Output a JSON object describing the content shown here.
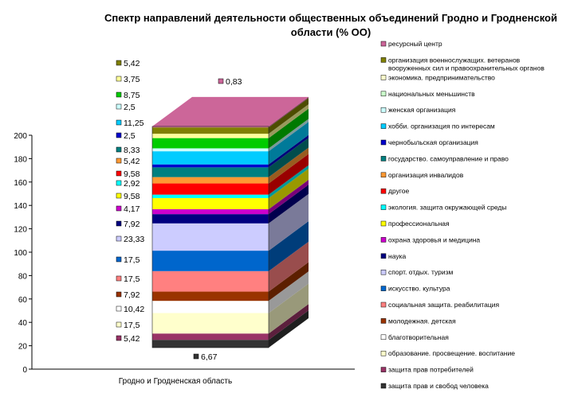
{
  "chart_data": {
    "type": "bar",
    "stacked": true,
    "three_d": true,
    "title_lines": [
      "Спектр направлений деятельности общественных объединений Гродно  и Гродненской",
      "области (% ОО)"
    ],
    "categories": [
      "Гродно и Гродненская область"
    ],
    "ylim": [
      0,
      200
    ],
    "yticks": [
      0,
      20,
      40,
      60,
      80,
      100,
      120,
      140,
      160,
      180,
      200
    ],
    "legend_position": "right",
    "series": [
      {
        "name": "защита прав и свобод человека",
        "color": "#333333",
        "values": [
          6.67
        ],
        "label": "6,67"
      },
      {
        "name": "защита прав потребителей",
        "color": "#993366",
        "values": [
          5.42
        ],
        "label": "5,42"
      },
      {
        "name": "образование. просвещение.  воспитание",
        "color": "#FFFFCC",
        "values": [
          17.5
        ],
        "label": "17,5"
      },
      {
        "name": "благотворительная",
        "color": "#FFFFFF",
        "values": [
          10.42
        ],
        "label": "10,42"
      },
      {
        "name": "молодежная. детская",
        "color": "#993300",
        "values": [
          7.92
        ],
        "label": "7,92"
      },
      {
        "name": "социальная защита. реабилитация",
        "color": "#FF8080",
        "values": [
          17.5
        ],
        "label": "17,5"
      },
      {
        "name": "искусство. культура",
        "color": "#0066CC",
        "values": [
          17.5
        ],
        "label": "17,5"
      },
      {
        "name": "спорт. отдых. туризм",
        "color": "#CCCCFF",
        "values": [
          23.33
        ],
        "label": "23,33"
      },
      {
        "name": "наука",
        "color": "#000080",
        "values": [
          7.92
        ],
        "label": "7,92"
      },
      {
        "name": "охрана здоровья и медицина",
        "color": "#CC00CC",
        "values": [
          4.17
        ],
        "label": "4,17"
      },
      {
        "name": "профессиональная",
        "color": "#FFFF00",
        "values": [
          9.58
        ],
        "label": "9,58"
      },
      {
        "name": "экология. защита окружающей среды",
        "color": "#00FFFF",
        "values": [
          2.92
        ],
        "label": "2,92"
      },
      {
        "name": "другое",
        "color": "#FF0000",
        "values": [
          9.58
        ],
        "label": "9,58"
      },
      {
        "name": "организация инвалидов",
        "color": "#FF9933",
        "values": [
          5.42
        ],
        "label": "5,42"
      },
      {
        "name": "государство. самоуправление и право",
        "color": "#008080",
        "values": [
          8.33
        ],
        "label": "8,33"
      },
      {
        "name": "чернобыльская организация",
        "color": "#0000CC",
        "values": [
          2.5
        ],
        "label": "2,5"
      },
      {
        "name": "хобби. организация по интересам",
        "color": "#00CCFF",
        "values": [
          11.25
        ],
        "label": "11,25"
      },
      {
        "name": "женская организация",
        "color": "#CCFFFF",
        "values": [
          2.5
        ],
        "label": "2,5"
      },
      {
        "name": "национальных меньшинств",
        "color": "#CCFFCC",
        "values": [
          0
        ],
        "label": ""
      },
      {
        "name": "экономика. предпринимательство",
        "color": "#FFFFCC",
        "values": [
          0
        ],
        "label": ""
      },
      {
        "name": "",
        "color": "#00CC00",
        "values": [
          8.75
        ],
        "label": "8,75"
      },
      {
        "name": "",
        "color": "#FFFF99",
        "values": [
          3.75
        ],
        "label": "3,75"
      },
      {
        "name": "организация военнослужащих. ветеранов вооруженных сил и правоохранительных органов",
        "color": "#808000",
        "values": [
          5.42
        ],
        "label": "5,42"
      },
      {
        "name": "ресурсный центр",
        "color": "#CC6699",
        "values": [
          0.83
        ],
        "label": "0,83"
      }
    ],
    "legend": [
      {
        "lines": [
          "ресурсный центр"
        ],
        "color": "#CC6699"
      },
      {
        "lines": [
          "организация военнослужащих. ветеранов",
          "вооруженных сил и правоохранительных органов"
        ],
        "color": "#808000"
      },
      {
        "lines": [
          "экономика. предпринимательство"
        ],
        "color": "#FFFFCC"
      },
      {
        "lines": [
          "национальных меньшинств"
        ],
        "color": "#CCFFCC"
      },
      {
        "lines": [
          "женская организация"
        ],
        "color": "#CCFFFF"
      },
      {
        "lines": [
          "хобби. организация по интересам"
        ],
        "color": "#00CCFF"
      },
      {
        "lines": [
          "чернобыльская организация"
        ],
        "color": "#0000CC"
      },
      {
        "lines": [
          "государство. самоуправление и право"
        ],
        "color": "#008080"
      },
      {
        "lines": [
          "организация инвалидов"
        ],
        "color": "#FF9933"
      },
      {
        "lines": [
          "другое"
        ],
        "color": "#FF0000"
      },
      {
        "lines": [
          "экология. защита окружающей среды"
        ],
        "color": "#00FFFF"
      },
      {
        "lines": [
          "профессиональная"
        ],
        "color": "#FFFF00"
      },
      {
        "lines": [
          "охрана здоровья и медицина"
        ],
        "color": "#CC00CC"
      },
      {
        "lines": [
          "наука"
        ],
        "color": "#000080"
      },
      {
        "lines": [
          "спорт. отдых. туризм"
        ],
        "color": "#CCCCFF"
      },
      {
        "lines": [
          "искусство. культура"
        ],
        "color": "#0066CC"
      },
      {
        "lines": [
          "социальная защита. реабилитация"
        ],
        "color": "#FF8080"
      },
      {
        "lines": [
          "молодежная. детская"
        ],
        "color": "#993300"
      },
      {
        "lines": [
          "благотворительная"
        ],
        "color": "#FFFFFF"
      },
      {
        "lines": [
          "образование. просвещение.  воспитание"
        ],
        "color": "#FFFFCC"
      },
      {
        "lines": [
          "защита прав потребителей"
        ],
        "color": "#993366"
      },
      {
        "lines": [
          "защита прав и свобод человека"
        ],
        "color": "#333333"
      }
    ]
  }
}
